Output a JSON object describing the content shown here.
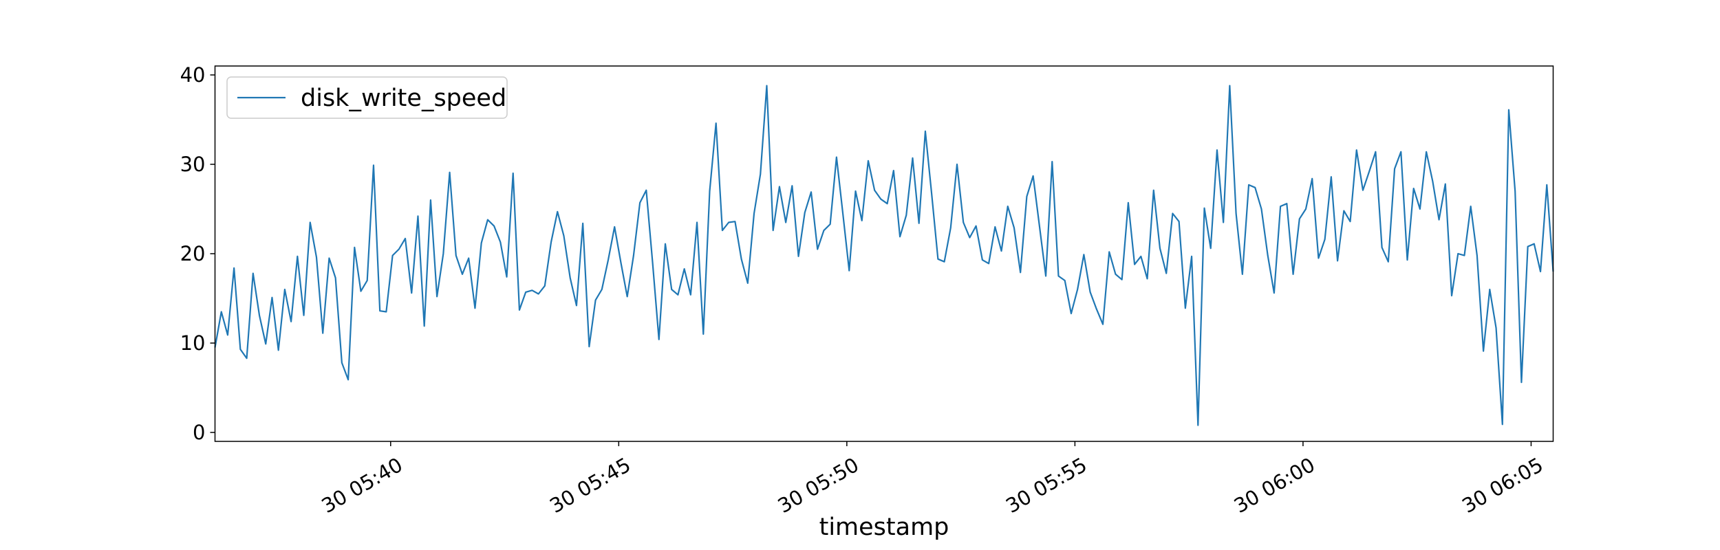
{
  "chart_data": {
    "type": "line",
    "xlabel": "timestamp",
    "ylabel": "",
    "x_start": "30 05:36:09",
    "x_end": "30 06:05:29",
    "ylim": [
      -1.0,
      41.0
    ],
    "yticks": [
      0,
      10,
      20,
      30,
      40
    ],
    "xticks": [
      {
        "time": "30 05:40",
        "label": "30 05:40"
      },
      {
        "time": "30 05:45",
        "label": "30 05:45"
      },
      {
        "time": "30 05:50",
        "label": "30 05:50"
      },
      {
        "time": "30 05:55",
        "label": "30 05:55"
      },
      {
        "time": "30 06:00",
        "label": "30 06:00"
      },
      {
        "time": "30 06:05",
        "label": "30 06:05"
      }
    ],
    "grid": false,
    "legend_position": "top-left",
    "series": [
      {
        "name": "disk_write_speed",
        "color": "#1f77b4",
        "values": [
          9.5,
          13.5,
          10.9,
          18.4,
          9.3,
          8.3,
          17.8,
          13.1,
          9.9,
          15.1,
          9.2,
          16.0,
          12.4,
          19.7,
          13.1,
          23.5,
          19.6,
          11.1,
          19.5,
          17.3,
          7.8,
          5.9,
          20.7,
          15.8,
          17.0,
          29.9,
          13.6,
          13.5,
          19.8,
          20.5,
          21.7,
          15.6,
          24.2,
          11.9,
          26.0,
          15.2,
          20.0,
          29.1,
          19.8,
          17.7,
          19.5,
          13.9,
          21.2,
          23.8,
          23.1,
          21.3,
          17.4,
          29.0,
          13.7,
          15.7,
          15.9,
          15.5,
          16.4,
          21.3,
          24.7,
          22.0,
          17.3,
          14.2,
          23.4,
          9.6,
          14.8,
          16.0,
          19.3,
          23.0,
          19.0,
          15.2,
          19.8,
          25.7,
          27.1,
          19.0,
          10.4,
          21.1,
          16.0,
          15.4,
          18.3,
          15.4,
          23.5,
          11.0,
          27.0,
          34.6,
          22.6,
          23.5,
          23.6,
          19.4,
          16.7,
          24.5,
          28.9,
          38.8,
          22.6,
          27.5,
          23.5,
          27.6,
          19.7,
          24.6,
          26.9,
          20.5,
          22.6,
          23.3,
          30.8,
          24.5,
          18.1,
          27.0,
          23.7,
          30.4,
          27.1,
          26.1,
          25.6,
          29.3,
          21.9,
          24.3,
          30.7,
          23.4,
          33.7,
          26.7,
          19.4,
          19.1,
          22.9,
          30.0,
          23.5,
          21.8,
          23.1,
          19.3,
          18.9,
          23.0,
          20.3,
          25.3,
          22.9,
          17.9,
          26.4,
          28.7,
          23.1,
          17.5,
          30.3,
          17.5,
          17.0,
          13.3,
          16.0,
          19.9,
          15.7,
          13.8,
          12.1,
          20.2,
          17.7,
          17.1,
          25.7,
          18.8,
          19.7,
          17.2,
          27.1,
          20.6,
          17.8,
          24.5,
          23.6,
          13.9,
          19.7,
          0.8,
          25.1,
          20.6,
          31.6,
          23.5,
          38.8,
          24.5,
          17.7,
          27.7,
          27.4,
          25.0,
          19.8,
          15.6,
          25.3,
          25.6,
          17.7,
          23.9,
          25.0,
          28.4,
          19.5,
          21.6,
          28.6,
          19.2,
          24.8,
          23.6,
          31.6,
          27.1,
          29.2,
          31.4,
          20.7,
          19.1,
          29.5,
          31.4,
          19.3,
          27.3,
          25.0,
          31.4,
          28.1,
          23.8,
          27.8,
          15.3,
          20.0,
          19.8,
          25.3,
          19.8,
          9.1,
          16.0,
          11.7,
          0.9,
          36.1,
          27.0,
          5.6,
          20.8,
          21.1,
          18.0,
          27.7,
          18.0
        ]
      }
    ]
  }
}
